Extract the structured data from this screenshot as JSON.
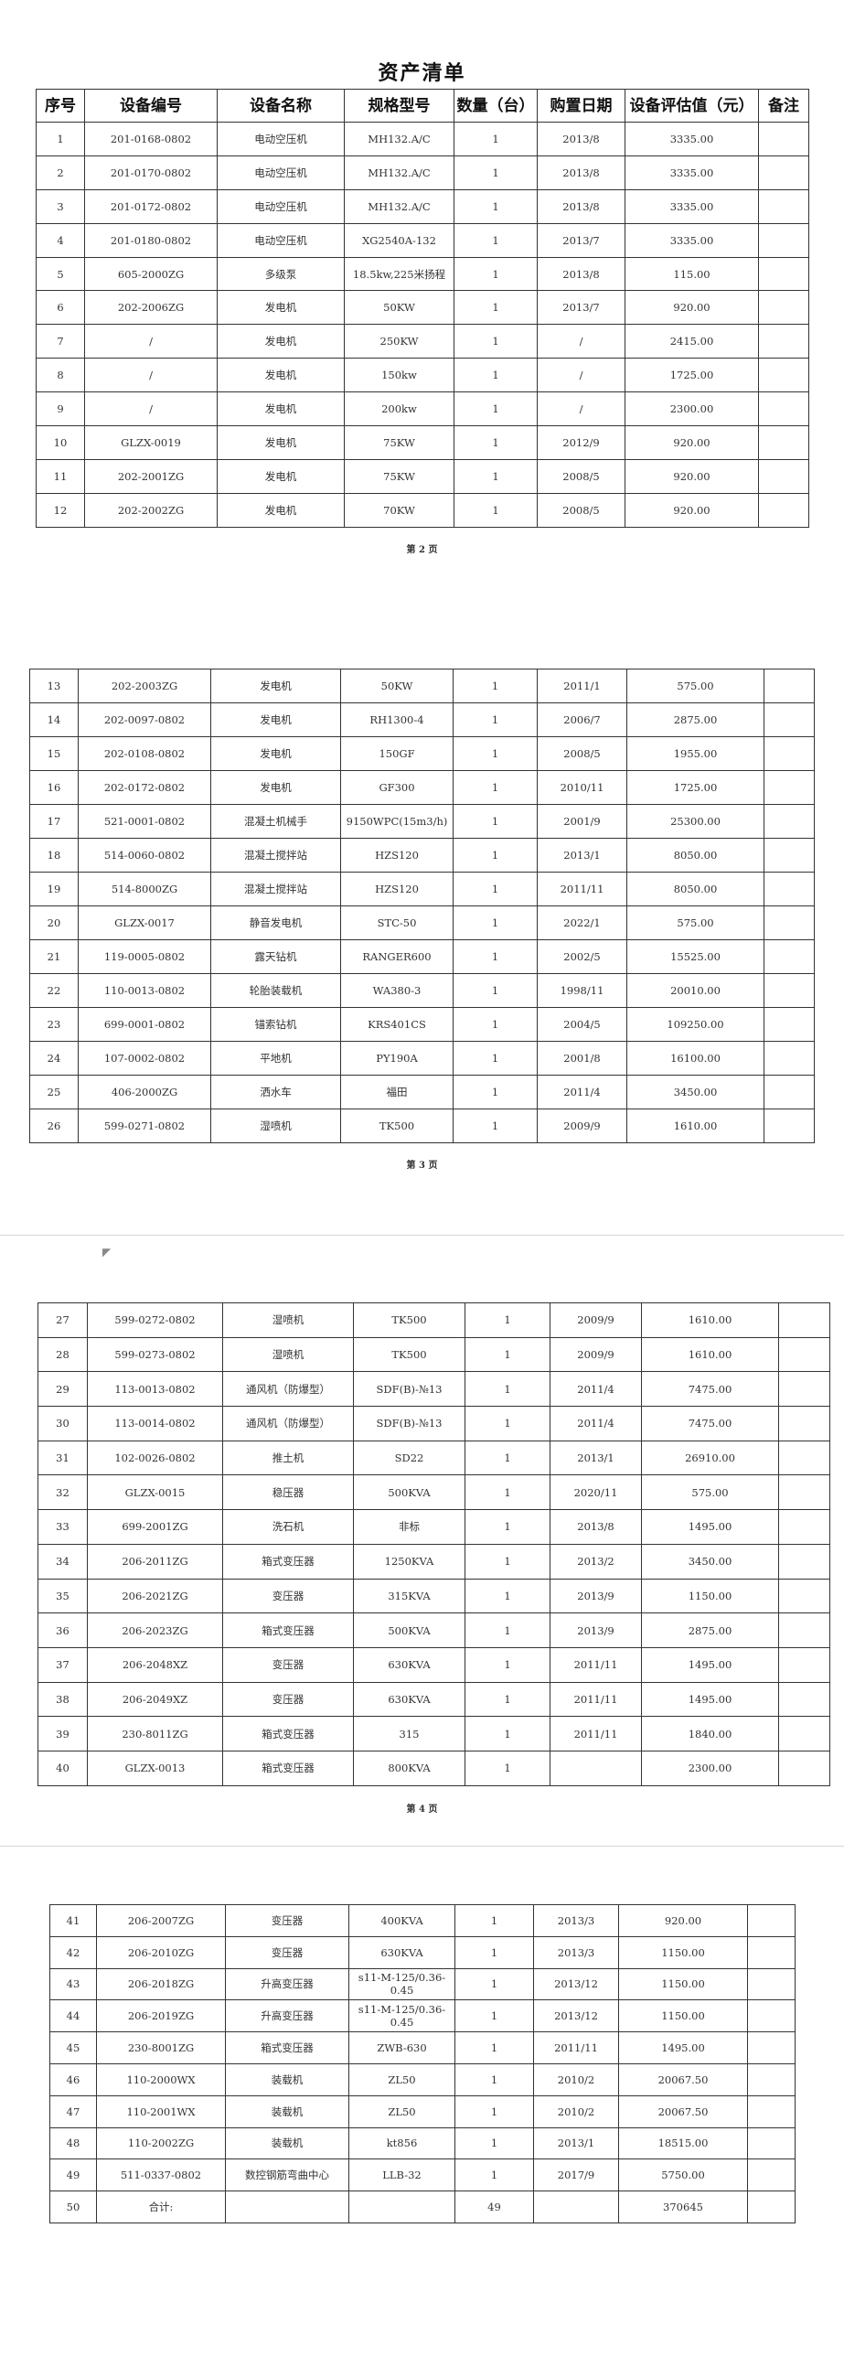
{
  "document": {
    "title": "资产清单",
    "columns": [
      "序号",
      "设备编号",
      "设备名称",
      "规格型号",
      "数量（台）",
      "购置日期",
      "设备评估值（元）",
      "备注"
    ],
    "pages": [
      {
        "page_label": "第 2 页",
        "rows": [
          [
            "1",
            "201-0168-0802",
            "电动空压机",
            "MH132.A/C",
            "1",
            "2013/8",
            "3335.00",
            ""
          ],
          [
            "2",
            "201-0170-0802",
            "电动空压机",
            "MH132.A/C",
            "1",
            "2013/8",
            "3335.00",
            ""
          ],
          [
            "3",
            "201-0172-0802",
            "电动空压机",
            "MH132.A/C",
            "1",
            "2013/8",
            "3335.00",
            ""
          ],
          [
            "4",
            "201-0180-0802",
            "电动空压机",
            "XG2540A-132",
            "1",
            "2013/7",
            "3335.00",
            ""
          ],
          [
            "5",
            "605-2000ZG",
            "多级泵",
            "18.5kw,225米扬程",
            "1",
            "2013/8",
            "115.00",
            ""
          ],
          [
            "6",
            "202-2006ZG",
            "发电机",
            "50KW",
            "1",
            "2013/7",
            "920.00",
            ""
          ],
          [
            "7",
            "/",
            "发电机",
            "250KW",
            "1",
            "/",
            "2415.00",
            ""
          ],
          [
            "8",
            "/",
            "发电机",
            "150kw",
            "1",
            "/",
            "1725.00",
            ""
          ],
          [
            "9",
            "/",
            "发电机",
            "200kw",
            "1",
            "/",
            "2300.00",
            ""
          ],
          [
            "10",
            "GLZX-0019",
            "发电机",
            "75KW",
            "1",
            "2012/9",
            "920.00",
            ""
          ],
          [
            "11",
            "202-2001ZG",
            "发电机",
            "75KW",
            "1",
            "2008/5",
            "920.00",
            ""
          ],
          [
            "12",
            "202-2002ZG",
            "发电机",
            "70KW",
            "1",
            "2008/5",
            "920.00",
            ""
          ]
        ]
      },
      {
        "page_label": "第 3 页",
        "rows": [
          [
            "13",
            "202-2003ZG",
            "发电机",
            "50KW",
            "1",
            "2011/1",
            "575.00",
            ""
          ],
          [
            "14",
            "202-0097-0802",
            "发电机",
            "RH1300-4",
            "1",
            "2006/7",
            "2875.00",
            ""
          ],
          [
            "15",
            "202-0108-0802",
            "发电机",
            "150GF",
            "1",
            "2008/5",
            "1955.00",
            ""
          ],
          [
            "16",
            "202-0172-0802",
            "发电机",
            "GF300",
            "1",
            "2010/11",
            "1725.00",
            ""
          ],
          [
            "17",
            "521-0001-0802",
            "混凝土机械手",
            "9150WPC(15m3/h)",
            "1",
            "2001/9",
            "25300.00",
            ""
          ],
          [
            "18",
            "514-0060-0802",
            "混凝土搅拌站",
            "HZS120",
            "1",
            "2013/1",
            "8050.00",
            ""
          ],
          [
            "19",
            "514-8000ZG",
            "混凝土搅拌站",
            "HZS120",
            "1",
            "2011/11",
            "8050.00",
            ""
          ],
          [
            "20",
            "GLZX-0017",
            "静音发电机",
            "STC-50",
            "1",
            "2022/1",
            "575.00",
            ""
          ],
          [
            "21",
            "119-0005-0802",
            "露天钻机",
            "RANGER600",
            "1",
            "2002/5",
            "15525.00",
            ""
          ],
          [
            "22",
            "110-0013-0802",
            "轮胎装载机",
            "WA380-3",
            "1",
            "1998/11",
            "20010.00",
            ""
          ],
          [
            "23",
            "699-0001-0802",
            "锚索钻机",
            "KRS401CS",
            "1",
            "2004/5",
            "109250.00",
            ""
          ],
          [
            "24",
            "107-0002-0802",
            "平地机",
            "PY190A",
            "1",
            "2001/8",
            "16100.00",
            ""
          ],
          [
            "25",
            "406-2000ZG",
            "洒水车",
            "福田",
            "1",
            "2011/4",
            "3450.00",
            ""
          ],
          [
            "26",
            "599-0271-0802",
            "湿喷机",
            "TK500",
            "1",
            "2009/9",
            "1610.00",
            ""
          ]
        ]
      },
      {
        "page_label": "第 4 页",
        "rows": [
          [
            "27",
            "599-0272-0802",
            "湿喷机",
            "TK500",
            "1",
            "2009/9",
            "1610.00",
            ""
          ],
          [
            "28",
            "599-0273-0802",
            "湿喷机",
            "TK500",
            "1",
            "2009/9",
            "1610.00",
            ""
          ],
          [
            "29",
            "113-0013-0802",
            "通风机（防爆型）",
            "SDF(B)-№13",
            "1",
            "2011/4",
            "7475.00",
            ""
          ],
          [
            "30",
            "113-0014-0802",
            "通风机（防爆型）",
            "SDF(B)-№13",
            "1",
            "2011/4",
            "7475.00",
            ""
          ],
          [
            "31",
            "102-0026-0802",
            "推土机",
            "SD22",
            "1",
            "2013/1",
            "26910.00",
            ""
          ],
          [
            "32",
            "GLZX-0015",
            "稳压器",
            "500KVA",
            "1",
            "2020/11",
            "575.00",
            ""
          ],
          [
            "33",
            "699-2001ZG",
            "洗石机",
            "非标",
            "1",
            "2013/8",
            "1495.00",
            ""
          ],
          [
            "34",
            "206-2011ZG",
            "箱式变压器",
            "1250KVA",
            "1",
            "2013/2",
            "3450.00",
            ""
          ],
          [
            "35",
            "206-2021ZG",
            "变压器",
            "315KVA",
            "1",
            "2013/9",
            "1150.00",
            ""
          ],
          [
            "36",
            "206-2023ZG",
            "箱式变压器",
            "500KVA",
            "1",
            "2013/9",
            "2875.00",
            ""
          ],
          [
            "37",
            "206-2048XZ",
            "变压器",
            "630KVA",
            "1",
            "2011/11",
            "1495.00",
            ""
          ],
          [
            "38",
            "206-2049XZ",
            "变压器",
            "630KVA",
            "1",
            "2011/11",
            "1495.00",
            ""
          ],
          [
            "39",
            "230-8011ZG",
            "箱式变压器",
            "315",
            "1",
            "2011/11",
            "1840.00",
            ""
          ],
          [
            "40",
            "GLZX-0013",
            "箱式变压器",
            "800KVA",
            "1",
            "",
            "2300.00",
            ""
          ]
        ]
      },
      {
        "page_label": "",
        "rows": [
          [
            "41",
            "206-2007ZG",
            "变压器",
            "400KVA",
            "1",
            "2013/3",
            "920.00",
            ""
          ],
          [
            "42",
            "206-2010ZG",
            "变压器",
            "630KVA",
            "1",
            "2013/3",
            "1150.00",
            ""
          ],
          [
            "43",
            "206-2018ZG",
            "升高变压器",
            "s11-M-125/0.36-0.45",
            "1",
            "2013/12",
            "1150.00",
            ""
          ],
          [
            "44",
            "206-2019ZG",
            "升高变压器",
            "s11-M-125/0.36-0.45",
            "1",
            "2013/12",
            "1150.00",
            ""
          ],
          [
            "45",
            "230-8001ZG",
            "箱式变压器",
            "ZWB-630",
            "1",
            "2011/11",
            "1495.00",
            ""
          ],
          [
            "46",
            "110-2000WX",
            "装载机",
            "ZL50",
            "1",
            "2010/2",
            "20067.50",
            ""
          ],
          [
            "47",
            "110-2001WX",
            "装载机",
            "ZL50",
            "1",
            "2010/2",
            "20067.50",
            ""
          ],
          [
            "48",
            "110-2002ZG",
            "装载机",
            "kt856",
            "1",
            "2013/1",
            "18515.00",
            ""
          ],
          [
            "49",
            "511-0337-0802",
            "数控钢筋弯曲中心",
            "LLB-32",
            "1",
            "2017/9",
            "5750.00",
            ""
          ],
          [
            "50",
            "合计:",
            "",
            "",
            "49",
            "",
            "370645",
            ""
          ]
        ]
      }
    ]
  }
}
